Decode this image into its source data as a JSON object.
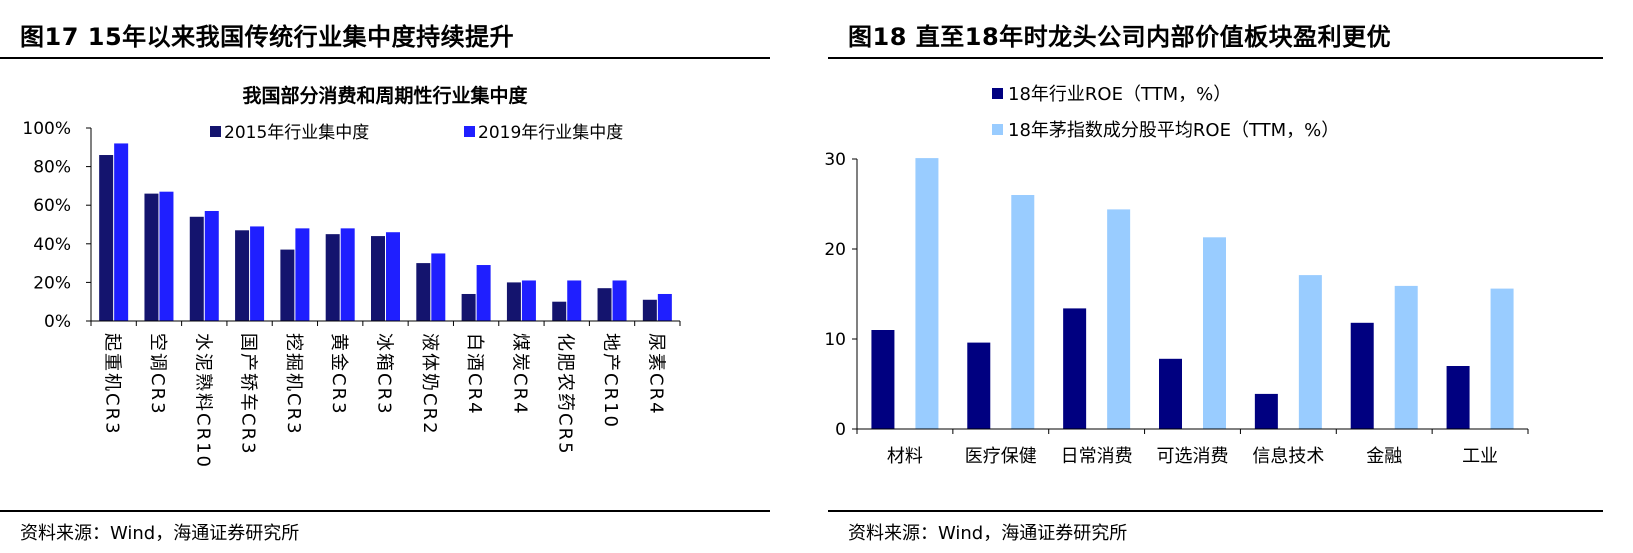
{
  "left_panel": {
    "figure_title": "图17 15年以来我国传统行业集中度持续提升",
    "source": "资料来源：Wind，海通证券研究所"
  },
  "right_panel": {
    "figure_title": "图18 直至18年时龙头公司内部价值板块盈利更优",
    "source": "资料来源：Wind，海通证券研究所"
  },
  "chart_data": [
    {
      "type": "bar",
      "title": "我国部分消费和周期性行业集中度",
      "xlabel": "",
      "ylabel": "",
      "categories": [
        "起重机CR3",
        "空调CR3",
        "水泥熟料CR10",
        "国产轿车CR3",
        "挖掘机CR3",
        "黄金CR3",
        "冰箱CR3",
        "液体奶CR2",
        "白酒CR4",
        "煤炭CR4",
        "化肥农药CR5",
        "地产CR10",
        "尿素CR4"
      ],
      "series": [
        {
          "name": "2015年行业集中度",
          "color": "#14146e",
          "values": [
            86,
            66,
            54,
            47,
            37,
            45,
            44,
            30,
            14,
            20,
            10,
            17,
            11
          ]
        },
        {
          "name": "2019年行业集中度",
          "color": "#1f1fff",
          "values": [
            92,
            67,
            57,
            49,
            48,
            48,
            46,
            35,
            29,
            21,
            21,
            21,
            14
          ]
        }
      ],
      "ylim": [
        0,
        100
      ],
      "yticks": [
        0,
        20,
        40,
        60,
        80,
        100
      ],
      "ytick_labels": [
        "0%",
        "20%",
        "40%",
        "60%",
        "80%",
        "100%"
      ],
      "grid": false,
      "legend": "top-right"
    },
    {
      "type": "bar",
      "title": "",
      "xlabel": "",
      "ylabel": "",
      "categories": [
        "材料",
        "医疗保健",
        "日常消费",
        "可选消费",
        "信息技术",
        "金融",
        "工业"
      ],
      "series": [
        {
          "name": "18年行业ROE（TTM，%）",
          "color": "#000080",
          "values": [
            11.0,
            9.6,
            13.4,
            7.8,
            3.9,
            11.8,
            7.0
          ]
        },
        {
          "name": "18年茅指数成分股平均ROE（TTM，%）",
          "color": "#99ccff",
          "values": [
            30.1,
            26.0,
            24.4,
            21.3,
            17.1,
            15.9,
            15.6
          ]
        }
      ],
      "ylim": [
        0,
        30
      ],
      "yticks": [
        0,
        10,
        20,
        30
      ],
      "ytick_labels": [
        "0",
        "10",
        "20",
        "30"
      ],
      "grid": false,
      "legend": "top-left"
    }
  ]
}
